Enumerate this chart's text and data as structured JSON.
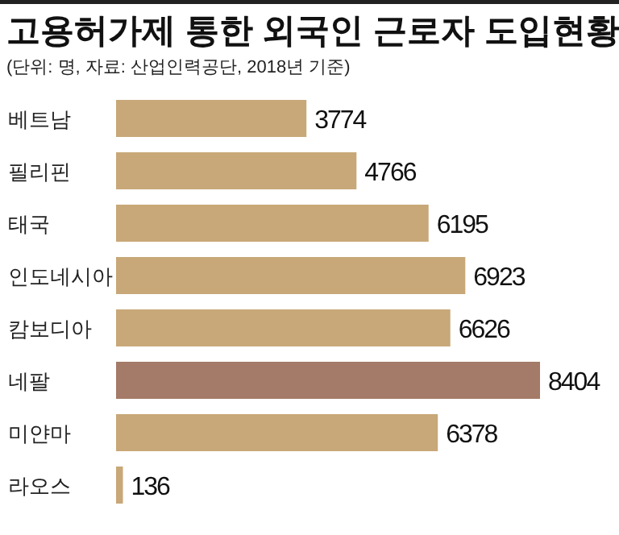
{
  "chart_data": {
    "type": "bar",
    "orientation": "horizontal",
    "title": "고용허가제 통한 외국인 근로자 도입현황",
    "subtitle": "(단위: 명, 자료: 산업인력공단, 2018년 기준)",
    "categories": [
      "베트남",
      "필리핀",
      "태국",
      "인도네시아",
      "캄보디아",
      "네팔",
      "미얀마",
      "라오스"
    ],
    "values": [
      3774,
      4766,
      6195,
      6923,
      6626,
      8404,
      6378,
      136
    ],
    "colors": [
      "#c8a878",
      "#c8a878",
      "#c8a878",
      "#c8a878",
      "#c8a878",
      "#a47a68",
      "#c8a878",
      "#c8a878"
    ],
    "data_labels": true
  }
}
